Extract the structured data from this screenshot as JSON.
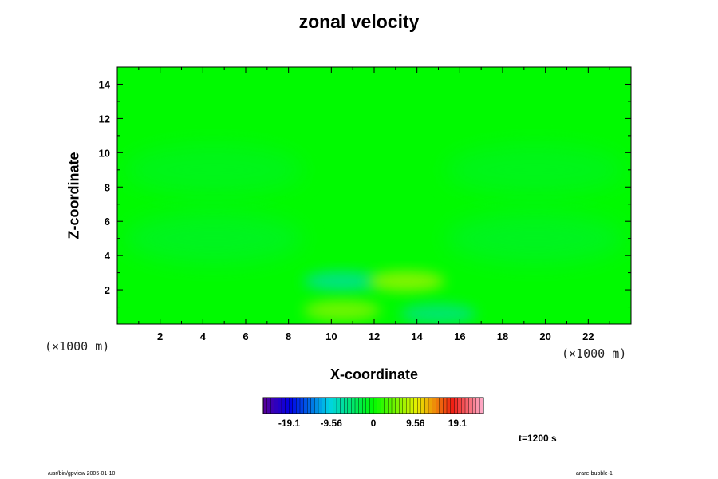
{
  "chart_data": {
    "type": "heatmap",
    "title": "zonal velocity",
    "xlabel": "X-coordinate",
    "ylabel": "Z-coordinate",
    "x_unit_label": "(×1000 m)",
    "y_unit_label": "(×1000 m)",
    "xlim": [
      0,
      24
    ],
    "ylim": [
      0,
      15
    ],
    "x_ticks": [
      "2",
      "4",
      "6",
      "8",
      "10",
      "12",
      "14",
      "16",
      "18",
      "20",
      "22"
    ],
    "y_ticks": [
      "2",
      "4",
      "6",
      "8",
      "10",
      "12",
      "14"
    ],
    "colorbar": {
      "range": [
        -25,
        25
      ],
      "tick_labels": [
        "-19.1",
        "-9.56",
        "0",
        "9.56",
        "19.1"
      ],
      "tick_values": [
        -19.1,
        -9.56,
        0,
        9.56,
        19.1
      ]
    },
    "background_value": 0,
    "features": [
      {
        "x": 4.5,
        "z": 9.0,
        "value": -2.0
      },
      {
        "x": 19.5,
        "z": 9.0,
        "value": -2.0
      },
      {
        "x": 4.5,
        "z": 5.0,
        "value": -2.5
      },
      {
        "x": 19.5,
        "z": 5.0,
        "value": -2.5
      },
      {
        "x": 10.5,
        "z": 2.5,
        "value": -7.0
      },
      {
        "x": 13.5,
        "z": 2.5,
        "value": 7.0
      },
      {
        "x": 10.5,
        "z": 0.8,
        "value": 6.0
      },
      {
        "x": 15.0,
        "z": 0.6,
        "value": -6.0
      }
    ],
    "time_label": "t=1200 s"
  },
  "footer": {
    "left": "/usr/bin/gpview 2005-01-10",
    "right": "arare-bubble-1"
  }
}
